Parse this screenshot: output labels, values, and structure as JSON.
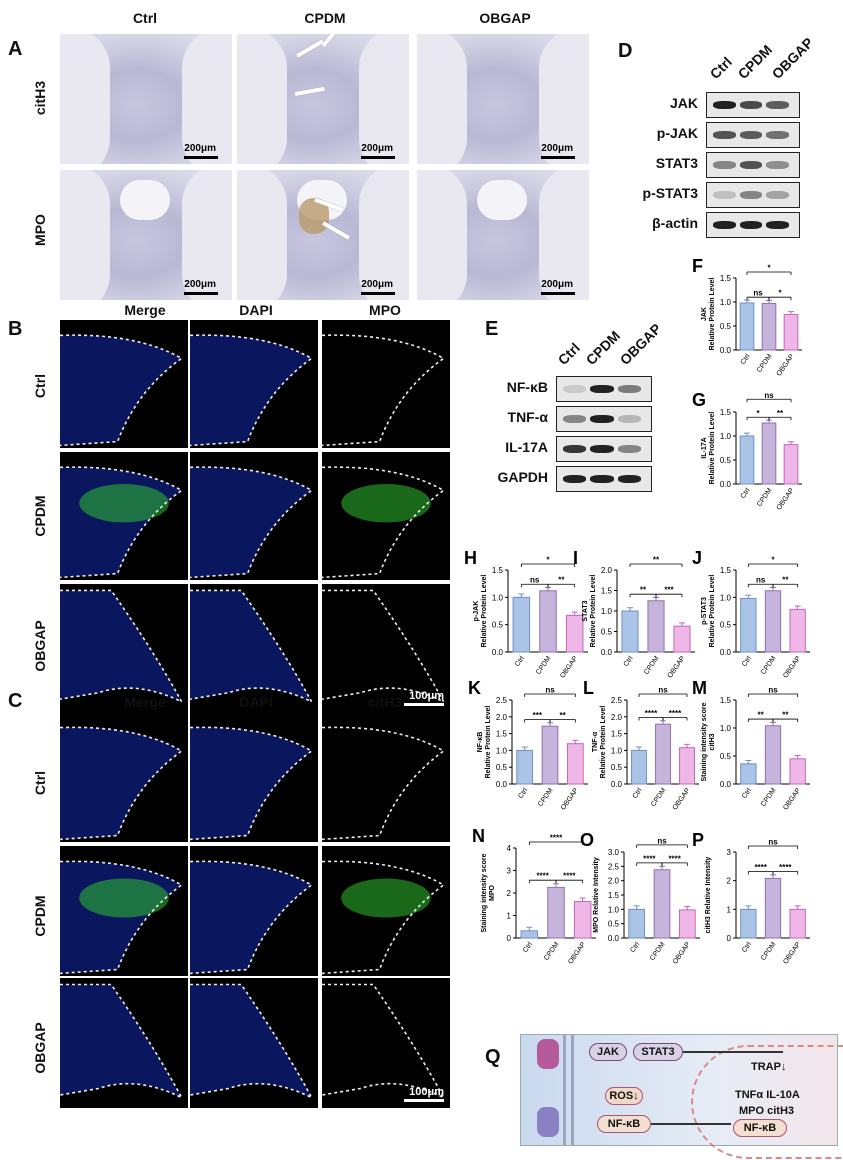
{
  "panels": {
    "A": {
      "label": "A",
      "columns": [
        "Ctrl",
        "CPDM",
        "OBGAP"
      ],
      "rows": [
        "citH3",
        "MPO"
      ],
      "scale": "200μm"
    },
    "B": {
      "label": "B",
      "columns": [
        "Merge",
        "DAPI",
        "MPO"
      ],
      "rows": [
        "Ctrl",
        "CPDM",
        "OBGAP"
      ],
      "scale": "100μm"
    },
    "C": {
      "label": "C",
      "columns": [
        "Merge",
        "DAPI",
        "citH3"
      ],
      "rows": [
        "Ctrl",
        "CPDM",
        "OBGAP"
      ],
      "scale": "100μm"
    },
    "D": {
      "label": "D",
      "groups": [
        "Ctrl",
        "CPDM",
        "OBGAP"
      ],
      "blots": [
        "JAK",
        "p-JAK",
        "STAT3",
        "p-STAT3",
        "β-actin"
      ]
    },
    "E": {
      "label": "E",
      "groups": [
        "Ctrl",
        "CPDM",
        "OBGAP"
      ],
      "blots": [
        "NF-κB",
        "TNF-α",
        "IL-17A",
        "GAPDH"
      ]
    },
    "Q": {
      "label": "Q",
      "jak": "JAK",
      "stat3": "STAT3",
      "trap": "TRAP↓",
      "cyto1": "TNFα IL-10A",
      "cyto2": "MPO citH3",
      "ros": "ROS↓",
      "nfkb": "NF-κB",
      "nfkb2": "NF-κB"
    }
  },
  "chart_data": [
    {
      "id": "F",
      "type": "bar",
      "label": "F",
      "categories": [
        "Ctrl",
        "CPDM",
        "OBGAP"
      ],
      "values": [
        0.98,
        0.97,
        0.74
      ],
      "ylabel": "JAK\nRelative Protein Level",
      "ylim": [
        0,
        1.5
      ],
      "yticks": [
        0.0,
        0.5,
        1.0,
        1.5
      ],
      "sig": [
        {
          "a": 0,
          "b": 1,
          "t": "ns"
        },
        {
          "a": 1,
          "b": 2,
          "t": "*"
        },
        {
          "a": 0,
          "b": 2,
          "t": "*"
        }
      ]
    },
    {
      "id": "G",
      "type": "bar",
      "label": "G",
      "categories": [
        "Ctrl",
        "CPDM",
        "OBGAP"
      ],
      "values": [
        1.0,
        1.27,
        0.82
      ],
      "ylabel": "IL-17A\nRelative Protein Level",
      "ylim": [
        0,
        1.5
      ],
      "yticks": [
        0.0,
        0.5,
        1.0,
        1.5
      ],
      "sig": [
        {
          "a": 0,
          "b": 1,
          "t": "*"
        },
        {
          "a": 1,
          "b": 2,
          "t": "**"
        },
        {
          "a": 0,
          "b": 2,
          "t": "ns"
        }
      ]
    },
    {
      "id": "H",
      "type": "bar",
      "label": "H",
      "categories": [
        "Ctrl",
        "CPDM",
        "OBGAP"
      ],
      "values": [
        1.0,
        1.12,
        0.67
      ],
      "ylabel": "p-JAK\nRelative Protein Level",
      "ylim": [
        0,
        1.5
      ],
      "yticks": [
        0.0,
        0.5,
        1.0,
        1.5
      ],
      "sig": [
        {
          "a": 0,
          "b": 1,
          "t": "ns"
        },
        {
          "a": 1,
          "b": 2,
          "t": "**"
        },
        {
          "a": 0,
          "b": 2,
          "t": "*"
        }
      ]
    },
    {
      "id": "I",
      "type": "bar",
      "label": "I",
      "categories": [
        "Ctrl",
        "CPDM",
        "OBGAP"
      ],
      "values": [
        1.0,
        1.25,
        0.63
      ],
      "ylabel": "STAT3\nRelative Protein Level",
      "ylim": [
        0,
        2.0
      ],
      "yticks": [
        0.0,
        0.5,
        1.0,
        1.5,
        2.0
      ],
      "sig": [
        {
          "a": 0,
          "b": 1,
          "t": "**"
        },
        {
          "a": 1,
          "b": 2,
          "t": "***"
        },
        {
          "a": 0,
          "b": 2,
          "t": "**"
        }
      ]
    },
    {
      "id": "J",
      "type": "bar",
      "label": "J",
      "categories": [
        "Ctrl",
        "CPDM",
        "OBGAP"
      ],
      "values": [
        0.98,
        1.12,
        0.78
      ],
      "ylabel": "p-STAT3\nRelative Protein Level",
      "ylim": [
        0,
        1.5
      ],
      "yticks": [
        0.0,
        0.5,
        1.0,
        1.5
      ],
      "sig": [
        {
          "a": 0,
          "b": 1,
          "t": "ns"
        },
        {
          "a": 1,
          "b": 2,
          "t": "**"
        },
        {
          "a": 0,
          "b": 2,
          "t": "*"
        }
      ]
    },
    {
      "id": "K",
      "type": "bar",
      "label": "K",
      "categories": [
        "Ctrl",
        "CPDM",
        "OBGAP"
      ],
      "values": [
        1.0,
        1.72,
        1.2
      ],
      "ylabel": "NF-κB\nRelative Protein Level",
      "ylim": [
        0,
        2.5
      ],
      "yticks": [
        0.0,
        0.5,
        1.0,
        1.5,
        2.0,
        2.5
      ],
      "sig": [
        {
          "a": 0,
          "b": 1,
          "t": "***"
        },
        {
          "a": 1,
          "b": 2,
          "t": "**"
        },
        {
          "a": 0,
          "b": 2,
          "t": "ns"
        }
      ]
    },
    {
      "id": "L",
      "type": "bar",
      "label": "L",
      "categories": [
        "Ctrl",
        "CPDM",
        "OBGAP"
      ],
      "values": [
        1.0,
        1.78,
        1.08
      ],
      "ylabel": "TNF-α\nRelative Protein Level",
      "ylim": [
        0,
        2.5
      ],
      "yticks": [
        0.0,
        0.5,
        1.0,
        1.5,
        2.0,
        2.5
      ],
      "sig": [
        {
          "a": 0,
          "b": 1,
          "t": "****"
        },
        {
          "a": 1,
          "b": 2,
          "t": "****"
        },
        {
          "a": 0,
          "b": 2,
          "t": "ns"
        }
      ]
    },
    {
      "id": "M",
      "type": "bar",
      "label": "M",
      "categories": [
        "Ctrl",
        "CPDM",
        "OBGAP"
      ],
      "values": [
        0.36,
        1.04,
        0.45
      ],
      "ylabel": "Staining intensity score\ncitH3",
      "ylim": [
        0,
        1.5
      ],
      "yticks": [
        0.0,
        0.5,
        1.0,
        1.5
      ],
      "sig": [
        {
          "a": 0,
          "b": 1,
          "t": "**"
        },
        {
          "a": 1,
          "b": 2,
          "t": "**"
        },
        {
          "a": 0,
          "b": 2,
          "t": "ns"
        }
      ]
    },
    {
      "id": "N",
      "type": "bar",
      "label": "N",
      "categories": [
        "Ctrl",
        "CPDM",
        "OBGAP"
      ],
      "values": [
        0.32,
        2.25,
        1.62
      ],
      "ylabel": "Staining intensity score\nMPO",
      "ylim": [
        0,
        4
      ],
      "yticks": [
        0,
        1,
        2,
        3,
        4
      ],
      "sig": [
        {
          "a": 0,
          "b": 1,
          "t": "****"
        },
        {
          "a": 1,
          "b": 2,
          "t": "****"
        },
        {
          "a": 0,
          "b": 2,
          "t": "****"
        }
      ]
    },
    {
      "id": "O",
      "type": "bar",
      "label": "O",
      "categories": [
        "Ctrl",
        "CPDM",
        "OBGAP"
      ],
      "values": [
        1.0,
        2.38,
        0.98
      ],
      "ylabel": "MPO Relative Intensity",
      "ylim": [
        0,
        3
      ],
      "yticks": [
        0.0,
        0.5,
        1.0,
        1.5,
        2.0,
        2.5,
        3.0
      ],
      "sig": [
        {
          "a": 0,
          "b": 1,
          "t": "****"
        },
        {
          "a": 1,
          "b": 2,
          "t": "****"
        },
        {
          "a": 0,
          "b": 2,
          "t": "ns"
        }
      ]
    },
    {
      "id": "P",
      "type": "bar",
      "label": "P",
      "categories": [
        "Ctrl",
        "CPDM",
        "OBGAP"
      ],
      "values": [
        1.0,
        2.08,
        1.0
      ],
      "ylabel": "citH3 Relative Intensity",
      "ylim": [
        0,
        3
      ],
      "yticks": [
        0,
        1,
        2,
        3
      ],
      "sig": [
        {
          "a": 0,
          "b": 1,
          "t": "****"
        },
        {
          "a": 1,
          "b": 2,
          "t": "****"
        },
        {
          "a": 0,
          "b": 2,
          "t": "ns"
        }
      ]
    }
  ],
  "colors": {
    "ctrl": "#a9c4e6",
    "cpdm": "#c7b4dc",
    "obgap": "#efb6e8",
    "ctrl_edge": "#6f8fc2",
    "cpdm_edge": "#8e72b0",
    "obgap_edge": "#c566b8"
  }
}
